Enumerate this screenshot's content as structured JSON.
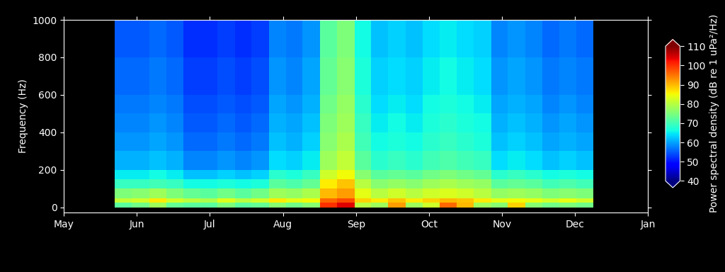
{
  "chart_data": {
    "type": "heatmap",
    "y_label": "Frequency (Hz)",
    "xlim": [
      0,
      8
    ],
    "xticks": [
      {
        "value": 0,
        "label": "May"
      },
      {
        "value": 1,
        "label": "Jun"
      },
      {
        "value": 2,
        "label": "Jul"
      },
      {
        "value": 3,
        "label": "Aug"
      },
      {
        "value": 4,
        "label": "Sep"
      },
      {
        "value": 5,
        "label": "Oct"
      },
      {
        "value": 6,
        "label": "Nov"
      },
      {
        "value": 7,
        "label": "Dec"
      },
      {
        "value": 8,
        "label": "Jan"
      }
    ],
    "ylim": [
      -27,
      1000
    ],
    "yticks": [
      0,
      200,
      400,
      600,
      800,
      1000
    ],
    "x_edges": [
      0.7,
      0.93,
      1.17,
      1.4,
      1.64,
      1.87,
      2.1,
      2.34,
      2.57,
      2.81,
      3.04,
      3.27,
      3.51,
      3.74,
      3.98,
      4.21,
      4.44,
      4.68,
      4.91,
      5.15,
      5.38,
      5.61,
      5.85,
      6.08,
      6.32,
      6.55,
      6.78,
      7.02,
      7.25
    ],
    "y_edges": [
      0,
      25,
      50,
      100,
      150,
      200,
      300,
      400,
      500,
      600,
      800,
      1000
    ],
    "cells": [
      [
        72,
        74,
        78,
        73,
        72,
        72,
        75,
        72,
        73,
        76,
        74,
        76,
        100,
        104,
        80,
        78,
        92,
        78,
        82,
        96,
        90,
        78,
        76,
        88,
        76,
        74,
        75,
        74
      ],
      [
        81,
        82,
        86,
        82,
        80,
        79,
        83,
        80,
        82,
        86,
        84,
        85,
        96,
        98,
        88,
        86,
        89,
        86,
        88,
        90,
        89,
        86,
        84,
        85,
        84,
        82,
        84,
        82
      ],
      [
        75,
        76,
        78,
        75,
        73,
        72,
        74,
        72,
        74,
        78,
        77,
        79,
        90,
        92,
        84,
        80,
        82,
        80,
        82,
        83,
        82,
        80,
        77,
        78,
        77,
        75,
        76,
        75
      ],
      [
        69,
        69,
        70,
        69,
        66,
        66,
        67,
        66,
        67,
        72,
        71,
        73,
        86,
        89,
        80,
        76,
        77,
        76,
        78,
        79,
        78,
        77,
        72,
        73,
        72,
        70,
        71,
        70
      ],
      [
        65,
        65,
        66,
        65,
        62,
        62,
        63,
        62,
        63,
        68,
        67,
        69,
        82,
        85,
        76,
        72,
        73,
        72,
        74,
        75,
        74,
        73,
        68,
        69,
        68,
        66,
        67,
        66
      ],
      [
        61,
        61,
        62,
        61,
        58,
        58,
        59,
        58,
        59,
        64,
        63,
        65,
        78,
        81,
        72,
        68,
        69,
        68,
        70,
        71,
        70,
        69,
        64,
        65,
        64,
        62,
        63,
        62
      ],
      [
        59,
        59,
        60,
        59,
        56,
        56,
        57,
        56,
        57,
        62,
        61,
        63,
        76,
        79,
        70,
        66,
        67,
        66,
        68,
        69,
        68,
        67,
        62,
        63,
        62,
        60,
        61,
        60
      ],
      [
        58,
        58,
        59,
        58,
        55,
        55,
        56,
        55,
        56,
        61,
        60,
        62,
        75,
        78,
        69,
        65,
        66,
        65,
        67,
        68,
        67,
        66,
        61,
        62,
        61,
        59,
        60,
        59
      ],
      [
        57,
        57,
        58,
        57,
        54,
        54,
        55,
        54,
        55,
        60,
        59,
        61,
        74,
        77,
        68,
        64,
        65,
        64,
        66,
        67,
        66,
        65,
        60,
        61,
        60,
        58,
        59,
        58
      ],
      [
        56,
        56,
        57,
        56,
        53,
        53,
        54,
        53,
        54,
        59,
        58,
        60,
        73,
        76,
        67,
        63,
        64,
        63,
        65,
        66,
        65,
        64,
        59,
        60,
        59,
        57,
        58,
        57
      ],
      [
        55,
        55,
        56,
        55,
        52,
        52,
        53,
        52,
        53,
        58,
        57,
        59,
        72,
        75,
        66,
        62,
        63,
        62,
        64,
        65,
        64,
        63,
        58,
        59,
        58,
        56,
        57,
        56
      ]
    ],
    "colorbar": {
      "label": "Power spectral density (dB re 1 uPa²/Hz)",
      "lim": [
        40,
        110
      ],
      "ticks": [
        40,
        50,
        60,
        70,
        80,
        90,
        100,
        110
      ]
    }
  }
}
